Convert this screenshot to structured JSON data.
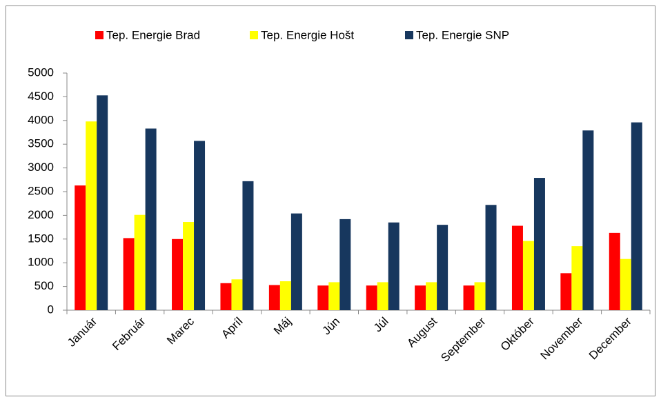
{
  "chart_data": {
    "type": "bar",
    "categories": [
      "Január",
      "Február",
      "Marec",
      "Apríl",
      "Máj",
      "Jún",
      "Júl",
      "August",
      "September",
      "Október",
      "November",
      "December"
    ],
    "series": [
      {
        "name": "Tep. Energie Brad",
        "color": "#ff0000",
        "values": [
          2630,
          1520,
          1500,
          570,
          530,
          520,
          520,
          520,
          520,
          1780,
          780,
          1630
        ]
      },
      {
        "name": "Tep. Energie Hošt",
        "color": "#ffff00",
        "values": [
          3980,
          2010,
          1860,
          650,
          610,
          590,
          590,
          590,
          590,
          1460,
          1350,
          1080
        ]
      },
      {
        "name": "Tep. Energie SNP",
        "color": "#17375e",
        "values": [
          4530,
          3830,
          3570,
          2720,
          2040,
          1920,
          1850,
          1800,
          2220,
          2790,
          3790,
          3960
        ]
      }
    ],
    "ylim": [
      0,
      5000
    ],
    "yticks": [
      0,
      500,
      1000,
      1500,
      2000,
      2500,
      3000,
      3500,
      4000,
      4500,
      5000
    ],
    "grid": false,
    "legend": "top"
  }
}
